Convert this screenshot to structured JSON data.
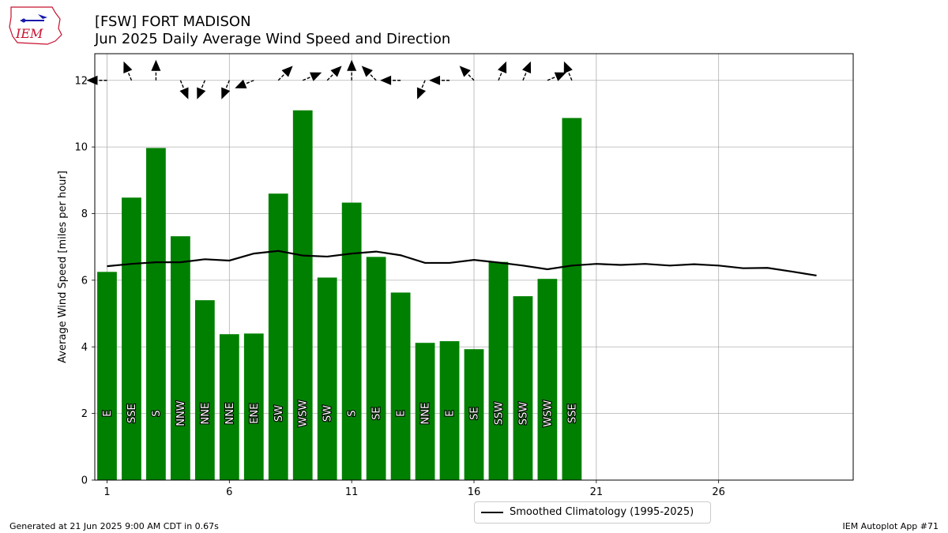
{
  "header": {
    "title_line1": "[FSW] FORT MADISON",
    "title_line2": "Jun 2025 Daily Average Wind Speed and Direction"
  },
  "logo": {
    "text": "IEM",
    "icon": "iem-iowa-map-logo",
    "color": "#c8102e"
  },
  "footer": {
    "left": "Generated at 21 Jun 2025 9:00 AM CDT in 0.67s",
    "right": "IEM Autoplot App #71"
  },
  "legend": {
    "label": "Smoothed Climatology (1995-2025)"
  },
  "chart_data": {
    "type": "bar",
    "ylabel": "Average Wind Speed [miles per hour]",
    "xlabel": "",
    "xlim": [
      0.5,
      31.5
    ],
    "ylim": [
      0,
      12.8
    ],
    "xticks": [
      1,
      6,
      11,
      16,
      21,
      26
    ],
    "yticks": [
      0,
      2,
      4,
      6,
      8,
      10,
      12
    ],
    "grid": true,
    "legend_position": "bottom-center",
    "bar_color": "#008000",
    "line_color": "#000000",
    "days": [
      1,
      2,
      3,
      4,
      5,
      6,
      7,
      8,
      9,
      10,
      11,
      12,
      13,
      14,
      15,
      16,
      17,
      18,
      19,
      20
    ],
    "values": [
      6.25,
      8.48,
      9.97,
      7.32,
      5.4,
      4.38,
      4.4,
      8.6,
      11.1,
      6.08,
      8.33,
      6.7,
      5.63,
      4.12,
      4.17,
      3.93,
      6.55,
      5.52,
      6.04,
      10.87
    ],
    "directions": [
      "E",
      "SSE",
      "S",
      "NNW",
      "NNE",
      "NNE",
      "ENE",
      "SW",
      "WSW",
      "SW",
      "S",
      "SE",
      "E",
      "NNE",
      "E",
      "SE",
      "SSW",
      "SSW",
      "WSW",
      "SSE"
    ],
    "direction_degrees": [
      90,
      157.5,
      180,
      337.5,
      22.5,
      22.5,
      67.5,
      225,
      247.5,
      225,
      180,
      135,
      90,
      22.5,
      90,
      135,
      202.5,
      202.5,
      247.5,
      157.5
    ],
    "series": [
      {
        "name": "Smoothed Climatology (1995-2025)",
        "x": [
          1,
          2,
          3,
          4,
          5,
          6,
          7,
          8,
          9,
          10,
          11,
          12,
          13,
          14,
          15,
          16,
          17,
          18,
          19,
          20,
          21,
          22,
          23,
          24,
          25,
          26,
          27,
          28,
          29,
          30
        ],
        "values": [
          6.42,
          6.49,
          6.54,
          6.54,
          6.63,
          6.59,
          6.8,
          6.88,
          6.74,
          6.71,
          6.8,
          6.86,
          6.75,
          6.52,
          6.52,
          6.61,
          6.53,
          6.44,
          6.33,
          6.44,
          6.49,
          6.46,
          6.49,
          6.44,
          6.48,
          6.44,
          6.36,
          6.37,
          6.26,
          6.14
        ]
      }
    ]
  }
}
